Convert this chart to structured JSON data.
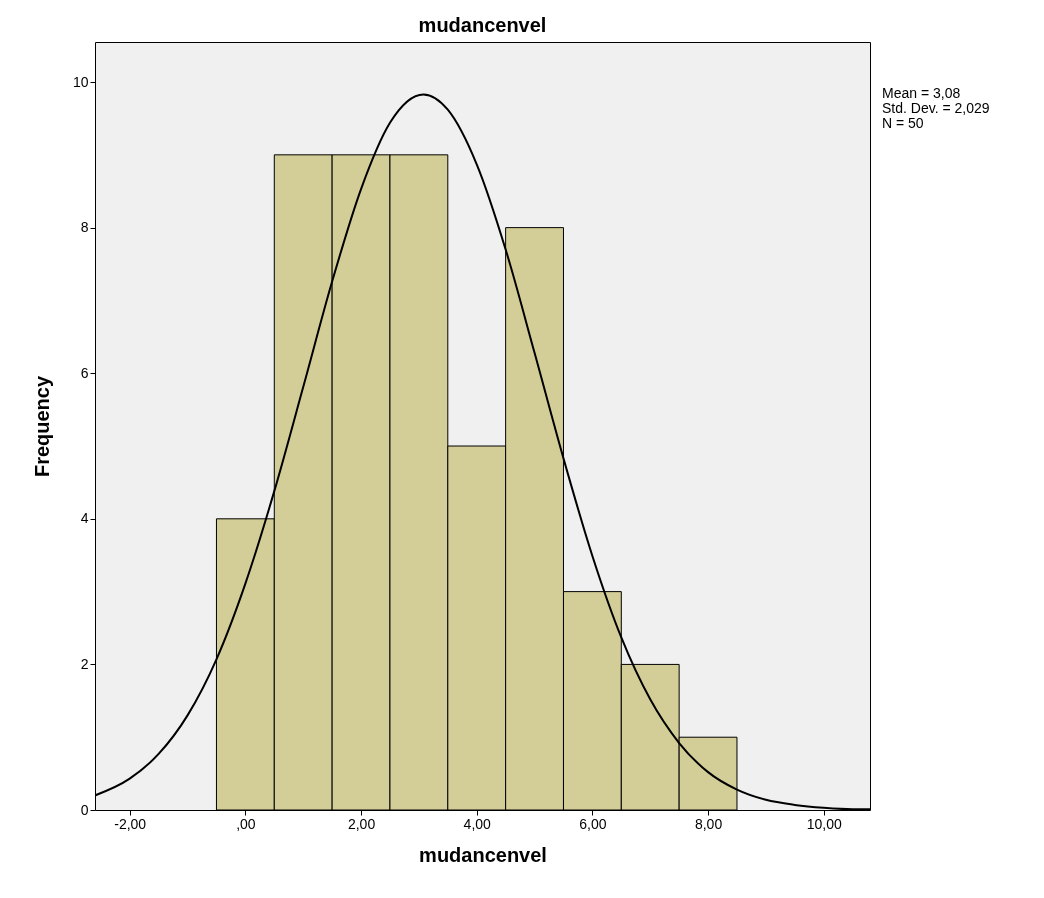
{
  "chart_data": {
    "type": "histogram",
    "title": "mudancenvel",
    "xlabel": "mudancenvel",
    "ylabel": "Frequency",
    "bins": [
      -0.5,
      0.5,
      1.5,
      2.5,
      3.5,
      4.5,
      5.5,
      6.5,
      7.5,
      8.5
    ],
    "series": [
      {
        "color": "#d3ce97",
        "values": [
          4,
          9,
          9,
          9,
          5,
          8,
          3,
          2,
          1
        ]
      },
      {
        "type": "line",
        "color": "#000000",
        "x": [
          -2.6,
          -2,
          -1.5,
          -1,
          -0.5,
          0,
          0.5,
          1,
          1.5,
          2,
          2.5,
          3.08,
          3.5,
          4,
          4.5,
          5,
          5.5,
          6,
          6.5,
          7,
          7.5,
          8,
          8.5,
          9,
          9.5,
          10,
          10.5,
          10.8
        ],
        "values": [
          0.2,
          0.43,
          0.77,
          1.3,
          2.07,
          3.11,
          4.38,
          5.81,
          7.26,
          8.53,
          9.44,
          9.83,
          9.62,
          8.87,
          7.7,
          6.28,
          4.83,
          3.49,
          2.37,
          1.52,
          0.92,
          0.52,
          0.28,
          0.14,
          0.07,
          0.03,
          0.01,
          0.01
        ]
      }
    ],
    "xlim": [
      -2.6,
      10.8
    ],
    "ylim": [
      0,
      10.55
    ],
    "xticks": [
      {
        "value": -2,
        "label": "-2,00"
      },
      {
        "value": 0,
        "label": ",00"
      },
      {
        "value": 2,
        "label": "2,00"
      },
      {
        "value": 4,
        "label": "4,00"
      },
      {
        "value": 6,
        "label": "6,00"
      },
      {
        "value": 8,
        "label": "8,00"
      },
      {
        "value": 10,
        "label": "10,00"
      }
    ],
    "yticks": [
      0,
      2,
      4,
      6,
      8,
      10
    ],
    "grid": false,
    "annotations": [
      "Mean = 3,08",
      "Std. Dev. = 2,029",
      "N = 50"
    ]
  }
}
